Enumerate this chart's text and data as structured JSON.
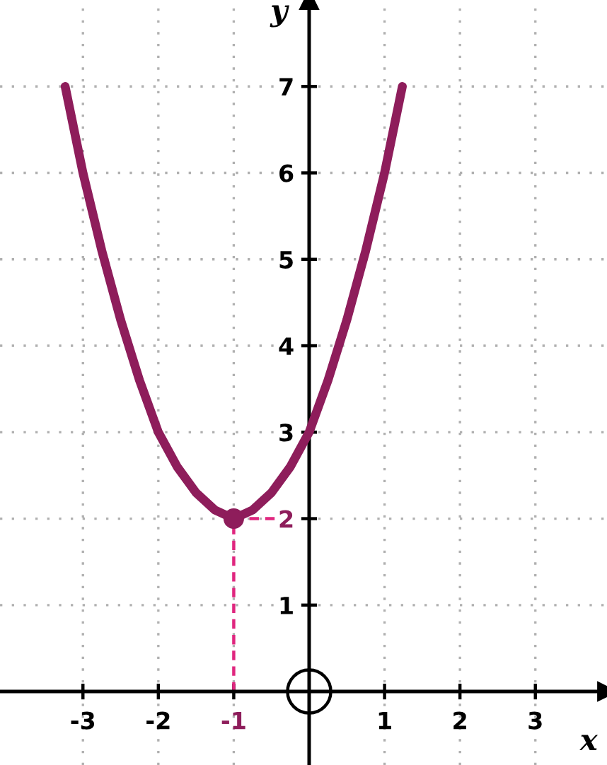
{
  "chart_data": {
    "type": "line",
    "xlabel": "x",
    "ylabel": "y",
    "xlim": [
      -4.1,
      3.95
    ],
    "ylim": [
      -0.85,
      8.0
    ],
    "xticks": [
      -3,
      -2,
      -1,
      1,
      2,
      3
    ],
    "yticks": [
      1,
      2,
      3,
      4,
      5,
      6,
      7
    ],
    "grid": true,
    "marker": "none",
    "line_style": "solid",
    "series": [
      {
        "color": "#8e1d5b",
        "x": [
          -3.236,
          -3,
          -2.75,
          -2.5,
          -2.25,
          -2,
          -1.75,
          -1.5,
          -1.25,
          -1,
          -0.75,
          -0.5,
          -0.25,
          0,
          0.25,
          0.5,
          0.75,
          1,
          1.236
        ],
        "values": [
          7,
          6,
          5.1,
          4.3,
          3.6,
          3,
          2.6,
          2.3,
          2.1,
          2,
          2.1,
          2.3,
          2.6,
          3,
          3.6,
          4.3,
          5.1,
          6,
          7
        ]
      },
      {
        "type": "line",
        "line_style": "dashed",
        "color": "#e0267f",
        "x": [
          -1,
          -1
        ],
        "values": [
          0,
          2
        ]
      },
      {
        "type": "line",
        "line_style": "dashed",
        "color": "#e0267f",
        "x": [
          -1,
          -0.4
        ],
        "values": [
          2,
          2
        ]
      },
      {
        "type": "scatter",
        "marker": "circle",
        "color": "#8e1d5b",
        "x": [
          -1
        ],
        "values": [
          2
        ]
      }
    ]
  }
}
